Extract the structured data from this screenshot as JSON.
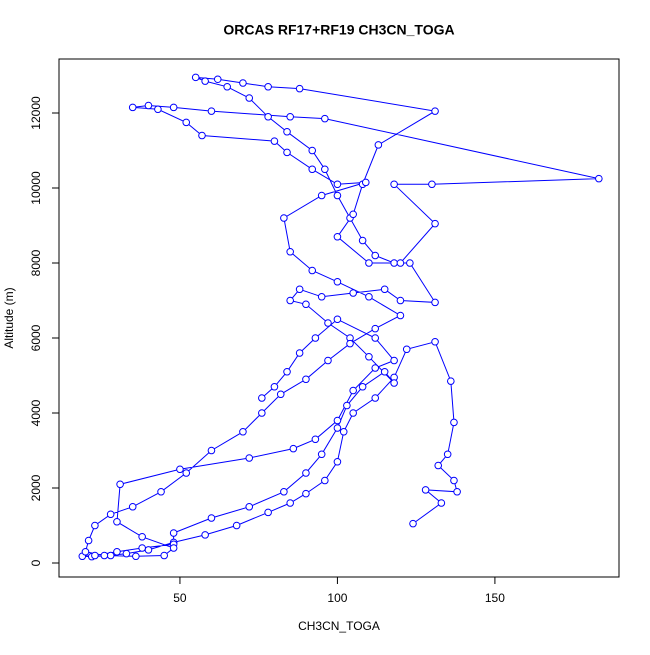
{
  "chart_data": {
    "type": "line",
    "title": "ORCAS RF17+RF19 CH3CN_TOGA",
    "x_label": "CH3CN_TOGA",
    "y_label": "Altitude (m)",
    "color": "#0000ff",
    "marker": "circle",
    "xlim": [
      11.6,
      189.4
    ],
    "ylim": [
      -373,
      13440
    ],
    "xticks": [
      50,
      100,
      150
    ],
    "yticks": [
      0,
      2000,
      4000,
      6000,
      8000,
      10000,
      12000
    ],
    "x": [
      124,
      133,
      128,
      138,
      137,
      132,
      135,
      137,
      136,
      131,
      122,
      118,
      112,
      105,
      102,
      100,
      96,
      90,
      85,
      78,
      68,
      58,
      48,
      40,
      33,
      28,
      22,
      19,
      23,
      30,
      38,
      48,
      48,
      60,
      72,
      83,
      90,
      95,
      100,
      103,
      108,
      115,
      118,
      110,
      104,
      97,
      90,
      85,
      88,
      95,
      105,
      115,
      120,
      131,
      123,
      118,
      112,
      108,
      104,
      100,
      96,
      92,
      84,
      78,
      72,
      65,
      58,
      55,
      62,
      70,
      78,
      88,
      131,
      113,
      108,
      105,
      100,
      110,
      120,
      131,
      118,
      130,
      183,
      96,
      85,
      60,
      48,
      40,
      35,
      43,
      52,
      57,
      80,
      84,
      92,
      100,
      109,
      95,
      83,
      85,
      92,
      100,
      110,
      120,
      112,
      104,
      97,
      90,
      82,
      76,
      70,
      60,
      52,
      44,
      35,
      28,
      23,
      21,
      20,
      26,
      36,
      45,
      48,
      38,
      30,
      31,
      50,
      72,
      86,
      93,
      100,
      105,
      112,
      118,
      112,
      100,
      93,
      88,
      84,
      80,
      76
    ],
    "y": [
      1050,
      1600,
      1950,
      1900,
      2200,
      2600,
      2900,
      3750,
      4850,
      5900,
      5700,
      4950,
      4400,
      4000,
      3500,
      2700,
      2200,
      1850,
      1600,
      1350,
      1000,
      750,
      550,
      350,
      250,
      200,
      170,
      180,
      200,
      300,
      400,
      500,
      800,
      1200,
      1500,
      1900,
      2400,
      2900,
      3600,
      4200,
      4700,
      5100,
      4800,
      5500,
      6000,
      6400,
      6900,
      7000,
      7300,
      7100,
      7200,
      7300,
      7000,
      6950,
      8000,
      8000,
      8200,
      8600,
      9200,
      9800,
      10500,
      11000,
      11500,
      11900,
      12400,
      12700,
      12850,
      12950,
      12900,
      12800,
      12700,
      12650,
      12050,
      11150,
      10100,
      9300,
      8700,
      8000,
      8000,
      9050,
      10100,
      10100,
      10250,
      11850,
      11900,
      12050,
      12150,
      12200,
      12150,
      12100,
      11750,
      11400,
      11250,
      10950,
      10500,
      10100,
      10150,
      9800,
      9200,
      8300,
      7800,
      7500,
      7100,
      6600,
      6250,
      5850,
      5400,
      4900,
      4500,
      4000,
      3500,
      3000,
      2400,
      1900,
      1500,
      1300,
      1000,
      600,
      300,
      200,
      180,
      200,
      400,
      700,
      1100,
      2100,
      2500,
      2800,
      3050,
      3300,
      3800,
      4600,
      5200,
      5400,
      6000,
      6500,
      6000,
      5600,
      5100,
      4700,
      4400
    ]
  }
}
